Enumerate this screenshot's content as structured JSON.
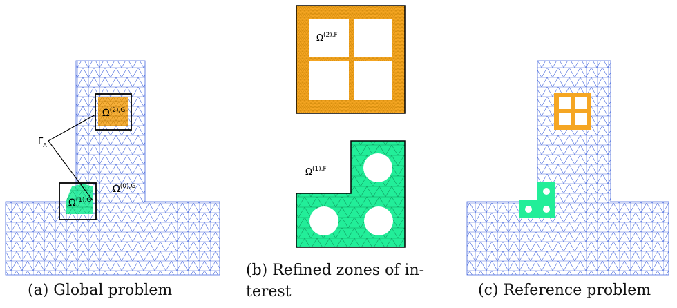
{
  "captions": {
    "a": "(a) Global problem",
    "b_line1": "(b) Refined zones of in-",
    "b_line2": "terest",
    "c": "(c) Reference problem"
  },
  "labels": {
    "omega_0_G": {
      "base": "Ω",
      "sup": "(0),G"
    },
    "omega_1_G": {
      "base": "Ω",
      "sup": "(1),G"
    },
    "omega_2_G": {
      "base": "Ω",
      "sup": "(2),G"
    },
    "gamma_A": {
      "base": "Γ",
      "sub": "A"
    },
    "omega_1_F": {
      "base": "Ω",
      "sup": "(1),F"
    },
    "omega_2_F": {
      "base": "Ω",
      "sup": "(2),F"
    }
  },
  "colors": {
    "coarse_mesh": "#4466dd",
    "zone_1": "#22ee99",
    "zone_2": "#f5a623",
    "frame": "#000000"
  }
}
